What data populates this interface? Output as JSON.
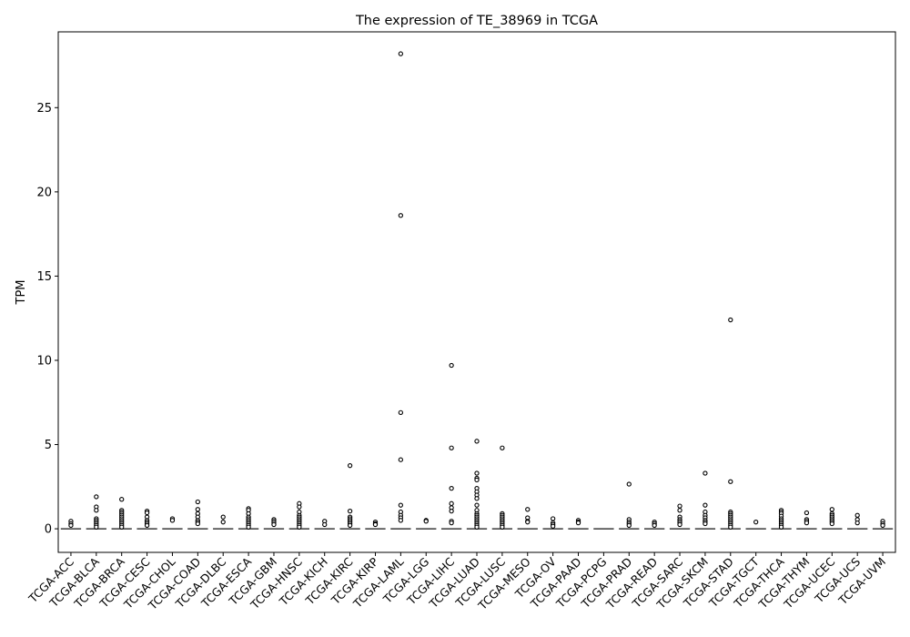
{
  "chart_data": {
    "type": "boxplot",
    "title": "The expression of TE_38969 in TCGA",
    "xlabel": "",
    "ylabel": "TPM",
    "ylim": [
      -1.4,
      29.5
    ],
    "yticks": [
      0,
      5,
      10,
      15,
      20,
      25
    ],
    "grid": false,
    "categories": [
      "TCGA-ACC",
      "TCGA-BLCA",
      "TCGA-BRCA",
      "TCGA-CESC",
      "TCGA-CHOL",
      "TCGA-COAD",
      "TCGA-DLBC",
      "TCGA-ESCA",
      "TCGA-GBM",
      "TCGA-HNSC",
      "TCGA-KICH",
      "TCGA-KIRC",
      "TCGA-KIRP",
      "TCGA-LAML",
      "TCGA-LGG",
      "TCGA-LIHC",
      "TCGA-LUAD",
      "TCGA-LUSC",
      "TCGA-MESO",
      "TCGA-OV",
      "TCGA-PAAD",
      "TCGA-PCPG",
      "TCGA-PRAD",
      "TCGA-READ",
      "TCGA-SARC",
      "TCGA-SKCM",
      "TCGA-STAD",
      "TCGA-TGCT",
      "TCGA-THCA",
      "TCGA-THYM",
      "TCGA-UCEC",
      "TCGA-UCS",
      "TCGA-UVM"
    ],
    "median": [
      0,
      0,
      0,
      0,
      0,
      0,
      0,
      0,
      0,
      0,
      0,
      0,
      0,
      0,
      0,
      0,
      0,
      0,
      0,
      0,
      0,
      0,
      0,
      0,
      0,
      0,
      0,
      0,
      0,
      0,
      0,
      0,
      0
    ],
    "outliers": [
      [
        0.45,
        0.3,
        0.2
      ],
      [
        1.9,
        1.3,
        1.1,
        0.6,
        0.5,
        0.4,
        0.3,
        0.2,
        0.1
      ],
      [
        1.75,
        1.1,
        1.0,
        0.9,
        0.8,
        0.7,
        0.6,
        0.5,
        0.4,
        0.3,
        0.2,
        0.1
      ],
      [
        1.05,
        0.95,
        0.7,
        0.5,
        0.4,
        0.3,
        0.2
      ],
      [
        0.6,
        0.5
      ],
      [
        1.6,
        1.15,
        0.9,
        0.7,
        0.5,
        0.4,
        0.3
      ],
      [
        0.7,
        0.4
      ],
      [
        1.2,
        1.1,
        0.9,
        0.7,
        0.6,
        0.5,
        0.4,
        0.3,
        0.2,
        0.1
      ],
      [
        0.55,
        0.45,
        0.35,
        0.25
      ],
      [
        1.5,
        1.3,
        1.0,
        0.8,
        0.7,
        0.6,
        0.5,
        0.4,
        0.3,
        0.2,
        0.1
      ],
      [
        0.45,
        0.25
      ],
      [
        3.75,
        1.05,
        0.7,
        0.6,
        0.5,
        0.4,
        0.3,
        0.2
      ],
      [
        0.4,
        0.3,
        0.25
      ],
      [
        28.2,
        18.6,
        6.9,
        4.1,
        1.4,
        1.0,
        0.8,
        0.65,
        0.5
      ],
      [
        0.5,
        0.45
      ],
      [
        9.7,
        4.8,
        2.4,
        1.5,
        1.25,
        1.05,
        0.45,
        0.35
      ],
      [
        5.2,
        3.3,
        3.0,
        2.9,
        2.4,
        2.2,
        2.0,
        1.8,
        1.4,
        1.1,
        0.9,
        0.8,
        0.7,
        0.6,
        0.5,
        0.4,
        0.3,
        0.2,
        0.1
      ],
      [
        4.8,
        0.9,
        0.8,
        0.7,
        0.6,
        0.5,
        0.4,
        0.3,
        0.2,
        0.1
      ],
      [
        1.15,
        0.65,
        0.45,
        0.4
      ],
      [
        0.6,
        0.35,
        0.25,
        0.15
      ],
      [
        0.5,
        0.4,
        0.35
      ],
      [],
      [
        2.65,
        0.55,
        0.4,
        0.3,
        0.2
      ],
      [
        0.4,
        0.3,
        0.2
      ],
      [
        1.35,
        1.1,
        0.7,
        0.55,
        0.45,
        0.35,
        0.25
      ],
      [
        3.3,
        1.4,
        1.0,
        0.8,
        0.65,
        0.5,
        0.4,
        0.3
      ],
      [
        12.4,
        2.8,
        1.0,
        0.9,
        0.8,
        0.7,
        0.6,
        0.5,
        0.4,
        0.3,
        0.2,
        0.1
      ],
      [
        0.4
      ],
      [
        1.1,
        1.0,
        0.9,
        0.75,
        0.6,
        0.5,
        0.4,
        0.3,
        0.2,
        0.1
      ],
      [
        0.95,
        0.55,
        0.45,
        0.35
      ],
      [
        1.15,
        0.9,
        0.8,
        0.7,
        0.6,
        0.5,
        0.4,
        0.3
      ],
      [
        0.8,
        0.55,
        0.35
      ],
      [
        0.45,
        0.3,
        0.2
      ]
    ]
  }
}
